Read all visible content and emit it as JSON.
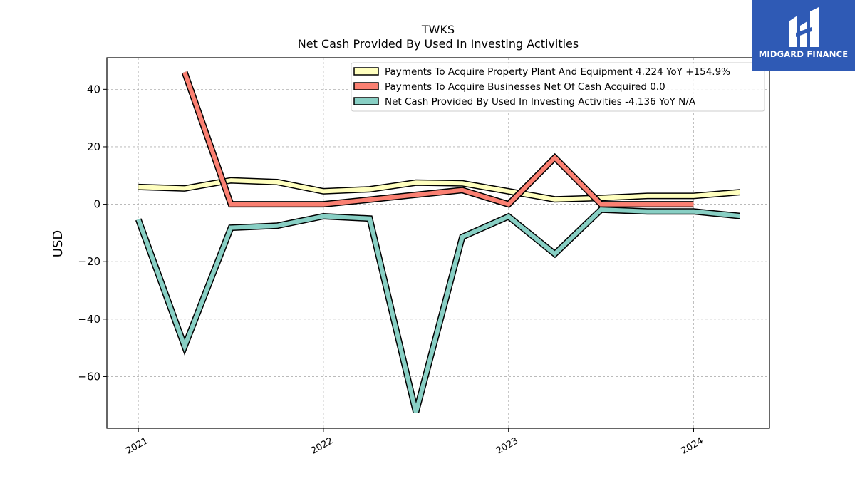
{
  "brand": {
    "name": "MIDGARD FINANCE",
    "color": "#2f5ab5"
  },
  "chart_data": {
    "type": "line",
    "title": "TWKS",
    "subtitle": "Net Cash Provided By Used In Investing Activities",
    "ylabel": "USD",
    "xlabel": "",
    "ylim": [
      -78,
      51
    ],
    "xlim": [
      2020.83,
      2024.41
    ],
    "yticks": [
      40,
      20,
      0,
      -20,
      -40,
      -60
    ],
    "ytick_labels": [
      "40",
      "20",
      "0",
      "−20",
      "−40",
      "−60"
    ],
    "xticks": [
      2021,
      2022,
      2023,
      2024
    ],
    "xtick_labels": [
      "2021",
      "2022",
      "2023",
      "2024"
    ],
    "grid": true,
    "legend_position": "top-right",
    "series": [
      {
        "name": "Payments To Acquire Property Plant And Equipment",
        "legend_label": "Payments To Acquire Property Plant And Equipment  4.224 YoY +154.9%",
        "color": "#ffffbf",
        "x": [
          2021.0,
          2021.25,
          2021.5,
          2021.75,
          2022.0,
          2022.25,
          2022.5,
          2022.75,
          2023.0,
          2023.25,
          2023.5,
          2023.75,
          2024.0,
          2024.25
        ],
        "values": [
          6.0,
          5.5,
          8.3,
          7.7,
          4.5,
          5.2,
          7.5,
          7.3,
          4.5,
          1.7,
          2.2,
          2.9,
          2.9,
          4.2
        ]
      },
      {
        "name": "Payments To Acquire Businesses Net Of Cash Acquired",
        "legend_label": "Payments To Acquire Businesses Net Of Cash Acquired  0.0",
        "color": "#fa8072",
        "x": [
          2021.25,
          2021.5,
          2021.75,
          2022.0,
          2022.25,
          2022.5,
          2022.75,
          2023.0,
          2023.25,
          2023.5,
          2023.75,
          2024.0
        ],
        "values": [
          46,
          0.0,
          0.0,
          0.0,
          1.6,
          3.3,
          4.9,
          0.0,
          16.2,
          0.0,
          0.0,
          0.0
        ]
      },
      {
        "name": "Net Cash Provided By Used In Investing Activities",
        "legend_label": "Net Cash Provided By Used In Investing Activities  -4.136 YoY N/A",
        "color": "#88cfc4",
        "x": [
          2021.0,
          2021.25,
          2021.5,
          2021.75,
          2022.0,
          2022.25,
          2022.5,
          2022.75,
          2023.0,
          2023.25,
          2023.5,
          2023.75,
          2024.0,
          2024.25
        ],
        "values": [
          -5.3,
          -49.5,
          -8.2,
          -7.5,
          -4.2,
          -5.0,
          -72.5,
          -11.4,
          -4.3,
          -17.3,
          -1.9,
          -2.5,
          -2.5,
          -4.1
        ]
      }
    ]
  }
}
